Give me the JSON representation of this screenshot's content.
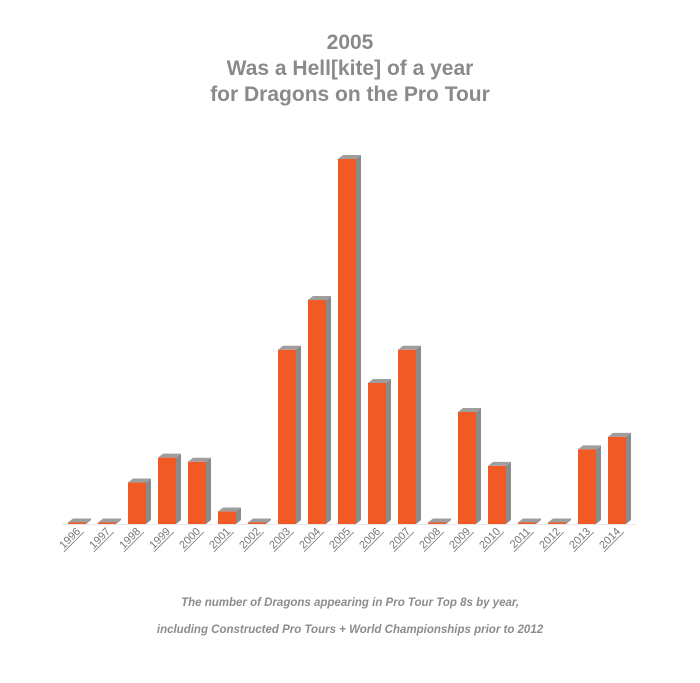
{
  "title_lines": [
    "2005",
    "Was a Hell[kite] of a year",
    "for Dragons on the Pro Tour"
  ],
  "caption_lines": [
    "The number of Dragons appearing in Pro Tour Top 8s by year,",
    "including Constructed Pro Tours + World Championships prior to 2012"
  ],
  "colors": {
    "bar_front": "#f15a24",
    "bar_top": "#9e9e9e",
    "bar_side": "#8a8a8a",
    "title": "#8a8a8a",
    "tick_label": "#777777",
    "caption": "#8c8c8c",
    "baseline": "#e6e6e6"
  },
  "chart_data": {
    "type": "bar",
    "style": "3d-column",
    "title": "2005\nWas a Hell[kite] of a year\nfor Dragons on the Pro Tour",
    "caption": "The number of Dragons appearing in Pro Tour Top 8s by year, including Constructed Pro Tours + World Championships prior to 2012",
    "xlabel": "",
    "ylabel": "",
    "y_axis_visible": false,
    "grid": false,
    "legend": "none",
    "categories": [
      "1996",
      "1997",
      "1998",
      "1999",
      "2000",
      "2001",
      "2002",
      "2003",
      "2004",
      "2005",
      "2006",
      "2007",
      "2008",
      "2009",
      "2010",
      "2011",
      "2012",
      "2013",
      "2014"
    ],
    "values": [
      0,
      0,
      5,
      8,
      7.5,
      1.5,
      0,
      21,
      27,
      44,
      17,
      21,
      0,
      13.5,
      7,
      0,
      0,
      9,
      10.5
    ],
    "ylim": [
      0,
      44
    ]
  }
}
